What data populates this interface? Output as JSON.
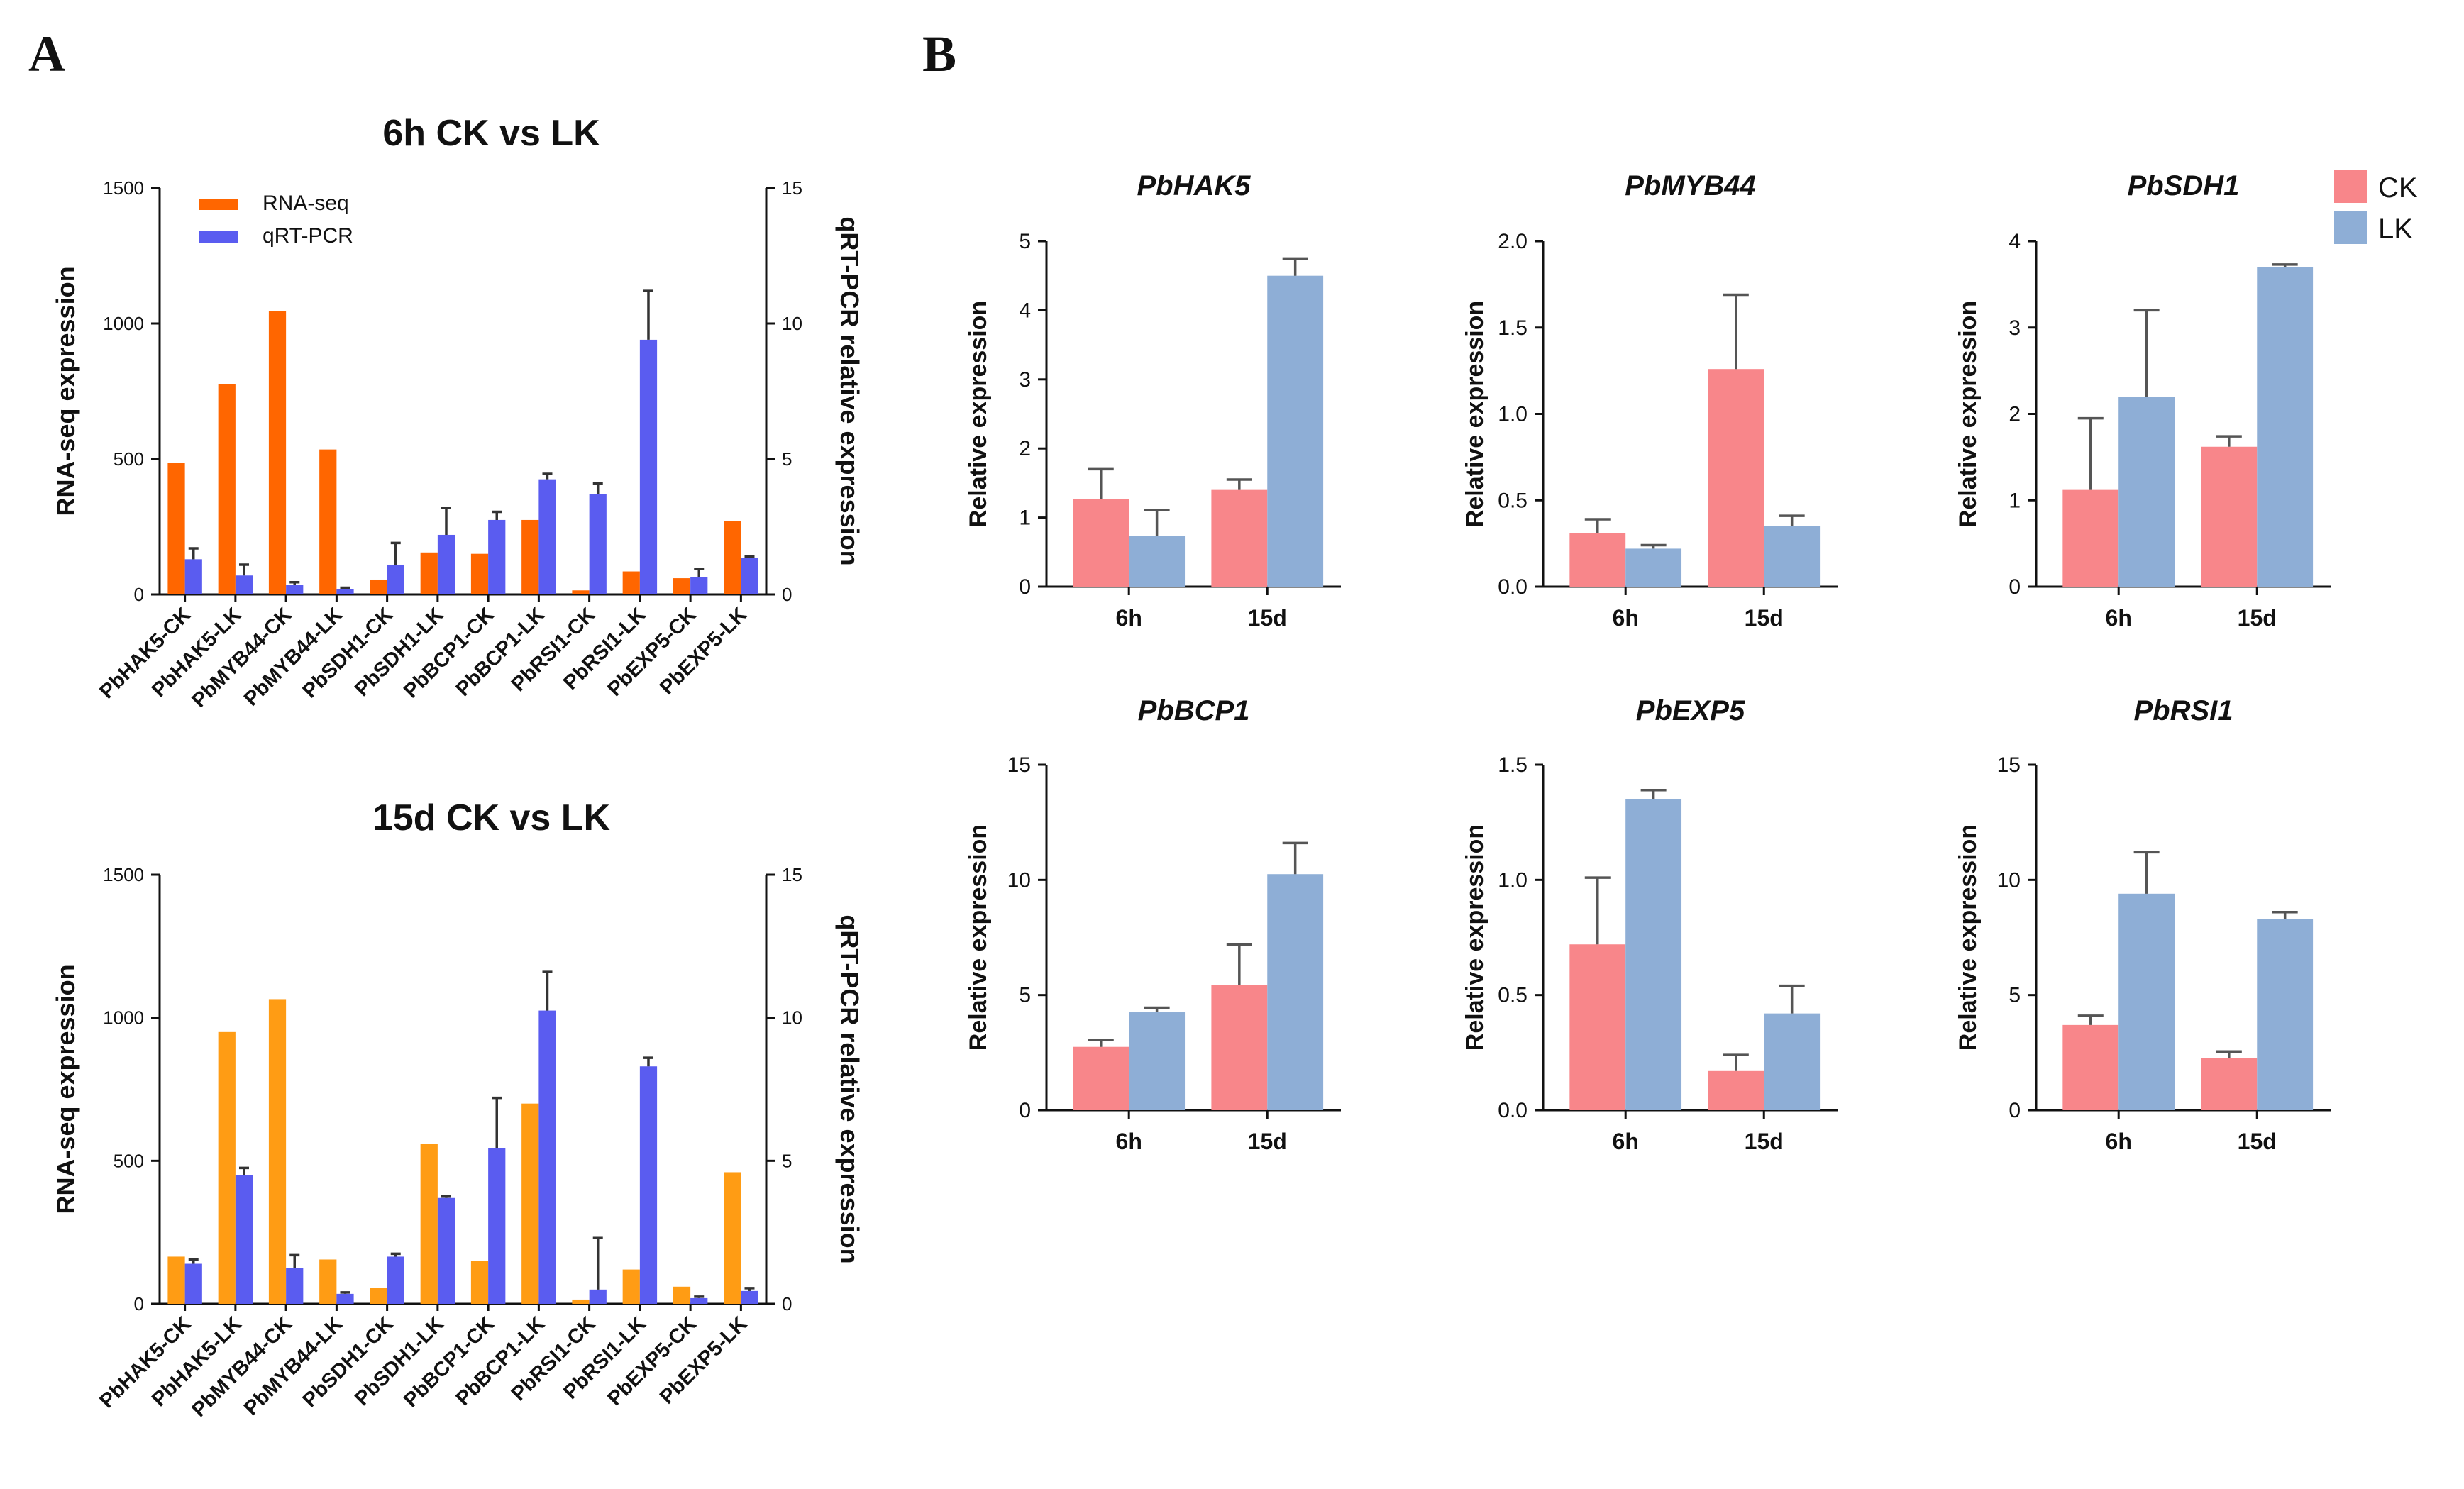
{
  "figure": {
    "panel_labels": [
      "A",
      "B"
    ],
    "colors": {
      "rnaseq_6h": "#ff6600",
      "rnaseq_15d": "#ff9c14",
      "qrtpcr": "#5a5cf0",
      "ck": "#f8868a",
      "lk": "#8eaed6",
      "axis": "#111111"
    }
  },
  "chart_data": [
    {
      "id": "A_top",
      "type": "bar",
      "title": "6h CK vs LK",
      "ylabel": "RNA-seq expression",
      "y2label": "qRT-PCR relative expression",
      "ylim": [
        0,
        1500
      ],
      "yticks": [
        "0",
        "500",
        "1000",
        "1500"
      ],
      "y2lim": [
        0,
        15
      ],
      "y2ticks": [
        "0",
        "5",
        "10",
        "15"
      ],
      "legend": {
        "placement": "top-left",
        "entries": [
          "RNA-seq",
          "qRT-PCR"
        ]
      },
      "categories": [
        "PbHAK5-CK",
        "PbHAK5-LK",
        "PbMYB44-CK",
        "PbMYB44-LK",
        "PbSDH1-CK",
        "PbSDH1-LK",
        "PbBCP1-CK",
        "PbBCP1-LK",
        "PbRSI1-CK",
        "PbRSI1-LK",
        "PbEXP5-CK",
        "PbEXP5-LK"
      ],
      "series": [
        {
          "name": "RNA-seq",
          "axis": "left",
          "values": [
            485,
            775,
            1045,
            535,
            55,
            155,
            150,
            275,
            15,
            85,
            60,
            270
          ]
        },
        {
          "name": "qRT-PCR",
          "axis": "right",
          "values": [
            1.3,
            0.7,
            0.35,
            0.2,
            1.1,
            2.2,
            2.75,
            4.25,
            3.7,
            9.4,
            0.65,
            1.35
          ],
          "errors": [
            0.4,
            0.4,
            0.1,
            0.05,
            0.8,
            1.0,
            0.3,
            0.2,
            0.4,
            1.8,
            0.3,
            0.05
          ]
        }
      ]
    },
    {
      "id": "A_bottom",
      "type": "bar",
      "title": "15d CK vs LK",
      "ylabel": "RNA-seq expression",
      "y2label": "qRT-PCR relative expression",
      "ylim": [
        0,
        1500
      ],
      "yticks": [
        "0",
        "500",
        "1000",
        "1500"
      ],
      "y2lim": [
        0,
        15
      ],
      "y2ticks": [
        "0",
        "5",
        "10",
        "15"
      ],
      "categories": [
        "PbHAK5-CK",
        "PbHAK5-LK",
        "PbMYB44-CK",
        "PbMYB44-LK",
        "PbSDH1-CK",
        "PbSDH1-LK",
        "PbBCP1-CK",
        "PbBCP1-LK",
        "PbRSI1-CK",
        "PbRSI1-LK",
        "PbEXP5-CK",
        "PbEXP5-LK"
      ],
      "series": [
        {
          "name": "RNA-seq",
          "axis": "left",
          "values": [
            165,
            950,
            1065,
            155,
            55,
            560,
            150,
            700,
            15,
            120,
            60,
            460
          ]
        },
        {
          "name": "qRT-PCR",
          "axis": "right",
          "values": [
            1.4,
            4.5,
            1.25,
            0.35,
            1.65,
            3.7,
            5.45,
            10.25,
            0.5,
            8.3,
            0.2,
            0.45
          ],
          "errors": [
            0.15,
            0.25,
            0.45,
            0.05,
            0.1,
            0.05,
            1.75,
            1.35,
            1.8,
            0.3,
            0.05,
            0.1
          ]
        }
      ]
    },
    {
      "id": "B_HAK5",
      "type": "bar",
      "title": "PbHAK5",
      "ylabel": "Relative expression",
      "ylim": [
        0,
        5
      ],
      "yticks": [
        "0",
        "1",
        "2",
        "3",
        "4",
        "5"
      ],
      "categories": [
        "6h",
        "15d"
      ],
      "series": [
        {
          "name": "CK",
          "values": [
            1.27,
            1.4
          ],
          "errors": [
            0.43,
            0.15
          ]
        },
        {
          "name": "LK",
          "values": [
            0.73,
            4.5
          ],
          "errors": [
            0.38,
            0.25
          ]
        }
      ]
    },
    {
      "id": "B_MYB44",
      "type": "bar",
      "title": "PbMYB44",
      "ylabel": "Relative expression",
      "ylim": [
        0,
        2
      ],
      "yticks": [
        "0.0",
        "0.5",
        "1.0",
        "1.5",
        "2.0"
      ],
      "categories": [
        "6h",
        "15d"
      ],
      "series": [
        {
          "name": "CK",
          "values": [
            0.31,
            1.26
          ],
          "errors": [
            0.08,
            0.43
          ]
        },
        {
          "name": "LK",
          "values": [
            0.22,
            0.35
          ],
          "errors": [
            0.02,
            0.06
          ]
        }
      ]
    },
    {
      "id": "B_SDH1",
      "type": "bar",
      "title": "PbSDH1",
      "ylabel": "Relative expression",
      "ylim": [
        0,
        4
      ],
      "yticks": [
        "0",
        "1",
        "2",
        "3",
        "4"
      ],
      "categories": [
        "6h",
        "15d"
      ],
      "legend": {
        "placement": "top-right",
        "entries": [
          "CK",
          "LK"
        ]
      },
      "series": [
        {
          "name": "CK",
          "values": [
            1.12,
            1.62
          ],
          "errors": [
            0.83,
            0.12
          ]
        },
        {
          "name": "LK",
          "values": [
            2.2,
            3.7
          ],
          "errors": [
            1.0,
            0.03
          ]
        }
      ]
    },
    {
      "id": "B_BCP1",
      "type": "bar",
      "title": "PbBCP1",
      "ylabel": "Relative expression",
      "ylim": [
        0,
        15
      ],
      "yticks": [
        "0",
        "5",
        "10",
        "15"
      ],
      "categories": [
        "6h",
        "15d"
      ],
      "series": [
        {
          "name": "CK",
          "values": [
            2.75,
            5.45
          ],
          "errors": [
            0.3,
            1.75
          ]
        },
        {
          "name": "LK",
          "values": [
            4.25,
            10.25
          ],
          "errors": [
            0.2,
            1.35
          ]
        }
      ]
    },
    {
      "id": "B_EXP5",
      "type": "bar",
      "title": "PbEXP5",
      "ylabel": "Relative expression",
      "ylim": [
        0,
        1.5
      ],
      "yticks": [
        "0.0",
        "0.5",
        "1.0",
        "1.5"
      ],
      "categories": [
        "6h",
        "15d"
      ],
      "series": [
        {
          "name": "CK",
          "values": [
            0.72,
            0.17
          ],
          "errors": [
            0.29,
            0.07
          ]
        },
        {
          "name": "LK",
          "values": [
            1.35,
            0.42
          ],
          "errors": [
            0.04,
            0.12
          ]
        }
      ]
    },
    {
      "id": "B_RSI1",
      "type": "bar",
      "title": "PbRSI1",
      "ylabel": "Relative expression",
      "ylim": [
        0,
        15
      ],
      "yticks": [
        "0",
        "5",
        "10",
        "15"
      ],
      "categories": [
        "6h",
        "15d"
      ],
      "series": [
        {
          "name": "CK",
          "values": [
            3.7,
            2.25
          ],
          "errors": [
            0.4,
            0.3
          ]
        },
        {
          "name": "LK",
          "values": [
            9.4,
            8.3
          ],
          "errors": [
            1.8,
            0.3
          ]
        }
      ]
    }
  ]
}
